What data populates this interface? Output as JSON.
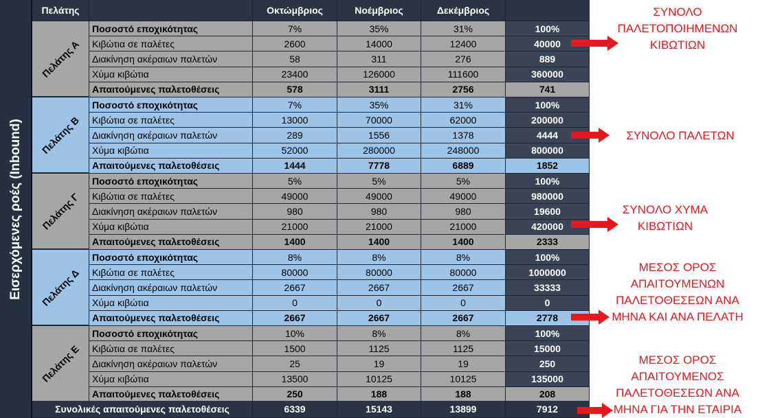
{
  "table": {
    "vertical_label": "Εισερχόμενες ροές (Inbound)",
    "header": {
      "customer": "Πελάτης",
      "months": [
        "Οκτώμβριος",
        "Νοέμβριος",
        "Δεκέμβριος"
      ],
      "total": ""
    },
    "row_labels": [
      "Ποσοστό εποχικότητας",
      "Κιβώτια σε παλέτες",
      "Διακίνηση ακέραιων παλετών",
      "Χύμα κιβώτια",
      "Απαιτούμενες παλετοθέσεις"
    ],
    "groups": [
      {
        "name": "Πελάτης Α",
        "labels": [
          "Ποσοστό εποχικότητας",
          "Κιβώτια σε παλέτες",
          "Διακίνηση ακέραιων παλετών",
          "Χύμα κιβώτια",
          "Απαιτούμενες παλετοθέσεις"
        ],
        "rows": [
          [
            "7%",
            "35%",
            "31%",
            "100%"
          ],
          [
            "2600",
            "14000",
            "12400",
            "40000"
          ],
          [
            "58",
            "311",
            "276",
            "889"
          ],
          [
            "23400",
            "126000",
            "111600",
            "360000"
          ],
          [
            "578",
            "3111",
            "2756",
            "741"
          ]
        ]
      },
      {
        "name": "Πελάτης Β",
        "labels": [
          "Ποσοστό εποχικότητας",
          "Κιβώτια σε παλέτες",
          "Διακίνηση ακέραιων παλετών",
          "Χύμα κιβώτια",
          "Απαιτούμενες παλετοθέσεις"
        ],
        "rows": [
          [
            "7%",
            "35%",
            "31%",
            "100%"
          ],
          [
            "13000",
            "70000",
            "62000",
            "200000"
          ],
          [
            "289",
            "1556",
            "1378",
            "4444"
          ],
          [
            "52000",
            "280000",
            "248000",
            "800000"
          ],
          [
            "1444",
            "7778",
            "6889",
            "1852"
          ]
        ]
      },
      {
        "name": "Πελάτης Γ",
        "labels": [
          "Ποσοστό εποχικότητας",
          "Κιβώτια σε παλέτες",
          "Διακίνηση ακέραιων παλετών",
          "Χύμα κιβώτια",
          "Απαιτούμενες παλετοθέσεις"
        ],
        "rows": [
          [
            "5%",
            "5%",
            "5%",
            "100%"
          ],
          [
            "49000",
            "49000",
            "49000",
            "980000"
          ],
          [
            "980",
            "980",
            "980",
            "19600"
          ],
          [
            "21000",
            "21000",
            "21000",
            "420000"
          ],
          [
            "1400",
            "1400",
            "1400",
            "2333"
          ]
        ]
      },
      {
        "name": "Πελάτης Δ",
        "labels": [
          "Ποσοστό εποχικότητας",
          "Κιβώτια σε παλέτες",
          "Διακίνηση ακέραιων παλετών",
          "Χύμα κιβώτια",
          "Απαιτούμενες παλετοθέσεις"
        ],
        "rows": [
          [
            "8%",
            "8%",
            "8%",
            "100%"
          ],
          [
            "80000",
            "80000",
            "80000",
            "1000000"
          ],
          [
            "2667",
            "2667",
            "2667",
            "33333"
          ],
          [
            "0",
            "0",
            "0",
            "0"
          ],
          [
            "2667",
            "2667",
            "2667",
            "2778"
          ]
        ]
      },
      {
        "name": "Πελάτης Ε",
        "labels": [
          "Ποσοστό εποχικότητας",
          "Κιβώτια σε παλέτες",
          "Διακίνηση ακέραιων παλετών",
          "Χύμα κιβώτια",
          "Απαιτούμενες παλετοθέσεις"
        ],
        "rows": [
          [
            "10%",
            "8%",
            "8%",
            "100%"
          ],
          [
            "1500",
            "1125",
            "1125",
            "15000"
          ],
          [
            "25",
            "19",
            "19",
            "250"
          ],
          [
            "13500",
            "10125",
            "10125",
            "135000"
          ],
          [
            "250",
            "188",
            "188",
            "208"
          ]
        ]
      }
    ],
    "footer": {
      "label": "Συνολικές απαιτούμενες παλετοθέσεις",
      "values": [
        "6339",
        "15143",
        "13899",
        "7912"
      ]
    }
  },
  "annotations": {
    "a1": [
      "ΣΥΝΟΛΟ",
      "ΠΑΛΕΤΟΠΟΙΗΜΕΝΩΝ",
      "ΚΙΒΩΤΙΩΝ"
    ],
    "a2": [
      "ΣΥΝΟΛΟ ΠΑΛΕΤΩΝ"
    ],
    "a3": [
      "ΣΥΝΟΛΟ ΧΥΜΑ",
      "ΚΙΒΩΤΙΩΝ"
    ],
    "a4": [
      "ΜΕΣΟΣ ΟΡΟΣ",
      "ΑΠΑΙΤΟΥΜΕΝΩΝ",
      "ΠΑΛΕΤΟΘΕΣΕΩΝ ΑΝΑ",
      "ΜΗΝΑ ΚΑΙ ΑΝΑ ΠΕΛΑΤΗ"
    ],
    "a5": [
      "ΜΕΣΟΣ ΟΡΟΣ",
      "ΑΠΑΙΤΟΥΜΕΝΟΣ",
      "ΠΑΛΕΤΟΘΕΣΕΩΝ ΑΝΑ",
      "ΜΗΝΑ ΓΙΑ ΤΗΝ ΕΤΑΙΡΙΑ"
    ]
  },
  "colors": {
    "group_bg": [
      "#a6a6a6",
      "#9dc3e6",
      "#a6a6a6",
      "#9dc3e6",
      "#a6a6a6"
    ],
    "annotation": "#e8181f"
  }
}
